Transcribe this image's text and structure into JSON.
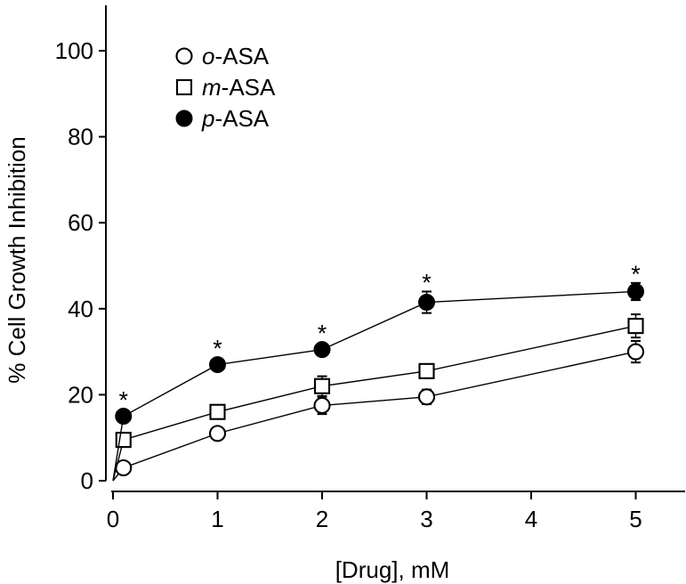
{
  "figure": {
    "background_color": "#ffffff",
    "ink_color": "#000000"
  },
  "chart_data": {
    "type": "line",
    "title": "",
    "xlabel": "[Drug], mM",
    "ylabel": "% Cell Growth Inhibition",
    "x_ticks": [
      0,
      1,
      2,
      3,
      4,
      5
    ],
    "y_ticks": [
      0,
      20,
      40,
      60,
      80,
      100
    ],
    "xlim": [
      0,
      5.5
    ],
    "ylim": [
      0,
      110
    ],
    "grid": false,
    "legend_position": "upper-left-inside",
    "significance_symbol": "*",
    "lines_start_at_origin": true,
    "x": [
      0.1,
      1,
      2,
      3,
      5
    ],
    "series": [
      {
        "label": "o-ASA",
        "label_italic_prefix": "o",
        "label_rest": "-ASA",
        "marker": "open-circle",
        "values": [
          3,
          11,
          17.5,
          19.5,
          30
        ],
        "errors": [
          0,
          0,
          2,
          1.7,
          2.5
        ],
        "significant": [
          false,
          false,
          false,
          false,
          false
        ]
      },
      {
        "label": "m-ASA",
        "label_italic_prefix": "m",
        "label_rest": "-ASA",
        "marker": "open-square",
        "values": [
          9.5,
          16,
          22,
          25.5,
          36
        ],
        "errors": [
          0,
          0,
          2.3,
          1.5,
          2.7
        ],
        "significant": [
          false,
          false,
          false,
          false,
          false
        ]
      },
      {
        "label": "p-ASA",
        "label_italic_prefix": "p",
        "label_rest": "-ASA",
        "marker": "filled-circle",
        "values": [
          15,
          27,
          30.5,
          41.5,
          44
        ],
        "errors": [
          0,
          0,
          0,
          2.5,
          2
        ],
        "significant": [
          true,
          true,
          true,
          true,
          true
        ]
      }
    ]
  }
}
